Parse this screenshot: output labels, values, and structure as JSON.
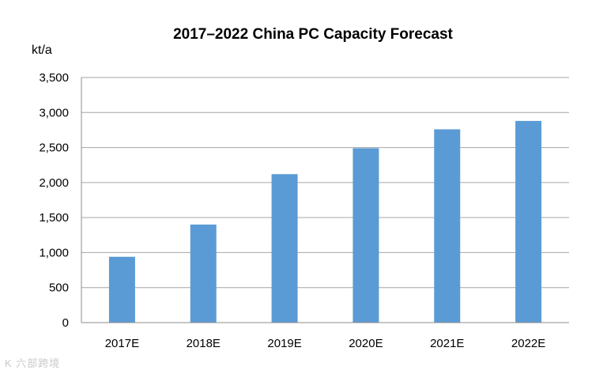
{
  "chart_data": {
    "type": "bar",
    "title": "2017–2022 China PC Capacity Forecast",
    "xlabel": "",
    "ylabel": "kt/a",
    "categories": [
      "2017E",
      "2018E",
      "2019E",
      "2020E",
      "2021E",
      "2022E"
    ],
    "values": [
      940,
      1400,
      2120,
      2490,
      2760,
      2880
    ],
    "ylim": [
      0,
      3500
    ],
    "yticks": [
      0,
      500,
      1000,
      1500,
      2000,
      2500,
      3000,
      3500
    ],
    "ytick_labels": [
      "0",
      "500",
      "1,000",
      "1,500",
      "2,000",
      "2,500",
      "3,000",
      "3,500"
    ],
    "grid": true,
    "legend": "none",
    "bar_color": "#5b9bd5",
    "grid_color": "#a6a6a6"
  },
  "watermark": "K 六部跨境"
}
